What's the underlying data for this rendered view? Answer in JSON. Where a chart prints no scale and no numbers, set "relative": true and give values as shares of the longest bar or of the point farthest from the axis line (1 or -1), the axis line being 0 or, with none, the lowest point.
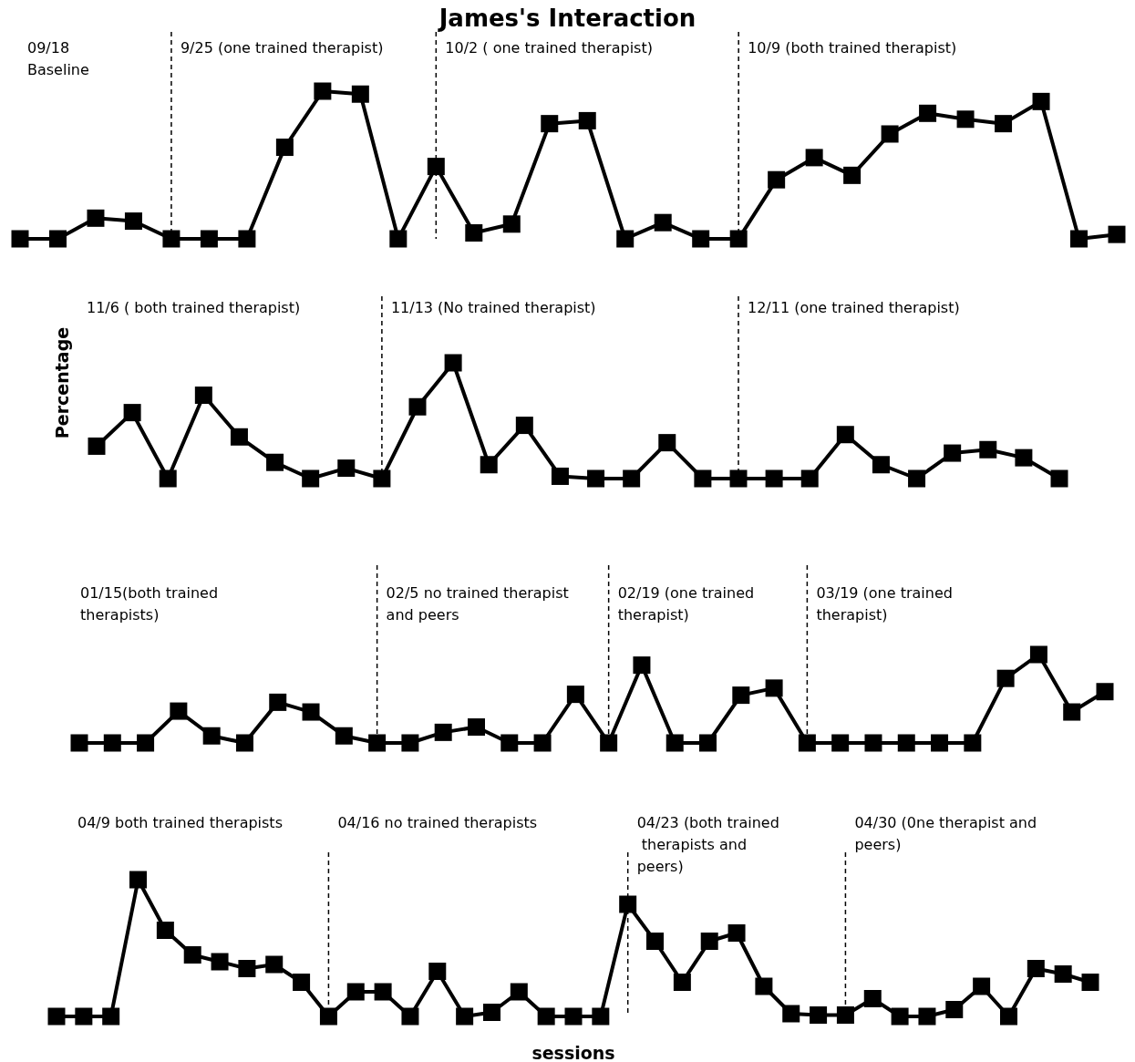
{
  "chart_data": [
    {
      "type": "line",
      "title": "James's Interaction",
      "relative": true,
      "marker": "square",
      "tick_labels": false,
      "categories": [
        null,
        null,
        null,
        null,
        null,
        null,
        null,
        null,
        null,
        null,
        null,
        null,
        null,
        null,
        null,
        null,
        null,
        null,
        null,
        null,
        null,
        null,
        null,
        null,
        null,
        null,
        null,
        null,
        null,
        null
      ],
      "series": [
        {
          "color": "#000000",
          "values": [
            0,
            0,
            0.14,
            0.12,
            0,
            0,
            0,
            0.62,
            1,
            0.98,
            0,
            0.49,
            0.04,
            0.1,
            0.78,
            0.8,
            0,
            0.11,
            0,
            0,
            0.4,
            0.55,
            0.43,
            0.71,
            0.85,
            0.81,
            0.78,
            0.93,
            0,
            0.03
          ]
        }
      ],
      "annotations": [
        "09/18 Baseline",
        "9/25 (one trained therapist)",
        "10/2 ( one trained therapist)",
        "10/9 (both trained therapist)"
      ]
    },
    {
      "type": "line",
      "ylabel": "Percentage",
      "relative": true,
      "marker": "square",
      "tick_labels": false,
      "categories": [
        null,
        null,
        null,
        null,
        null,
        null,
        null,
        null,
        null,
        null,
        null,
        null,
        null,
        null,
        null,
        null,
        null,
        null,
        null,
        null,
        null,
        null,
        null,
        null,
        null,
        null,
        null,
        null
      ],
      "series": [
        {
          "color": "#000000",
          "values": [
            0.28,
            0.57,
            0,
            0.72,
            0.36,
            0.14,
            0,
            0.09,
            0,
            0.62,
            1,
            0.12,
            0.46,
            0.02,
            0,
            0,
            0.31,
            0,
            0,
            0,
            0,
            0.38,
            0.12,
            0,
            0.22,
            0.25,
            0.18,
            0
          ]
        }
      ],
      "annotations": [
        "11/6 ( both trained therapist)",
        "11/13 (No trained therapist)",
        "12/11 (one trained therapist)"
      ]
    },
    {
      "type": "line",
      "relative": true,
      "marker": "square",
      "tick_labels": false,
      "categories": [
        null,
        null,
        null,
        null,
        null,
        null,
        null,
        null,
        null,
        null,
        null,
        null,
        null,
        null,
        null,
        null,
        null,
        null,
        null,
        null,
        null,
        null,
        null,
        null,
        null,
        null,
        null,
        null,
        null,
        null,
        null,
        null
      ],
      "series": [
        {
          "color": "#000000",
          "values": [
            0,
            0,
            0,
            0.36,
            0.08,
            0,
            0.46,
            0.35,
            0.08,
            0,
            0,
            0.12,
            0.18,
            0,
            0,
            0.55,
            0,
            0.88,
            0,
            0,
            0.54,
            0.62,
            0,
            0,
            0,
            0,
            0,
            0,
            0.73,
            1,
            0.35,
            0.58
          ]
        }
      ],
      "annotations": [
        "01/15(both trained therapists)",
        "02/5 no trained therapist and peers",
        "02/19 (one trained therapist)",
        "03/19 (one trained therapist)"
      ]
    },
    {
      "type": "line",
      "xlabel": "sessions",
      "relative": true,
      "marker": "square",
      "tick_labels": false,
      "categories": [
        null,
        null,
        null,
        null,
        null,
        null,
        null,
        null,
        null,
        null,
        null,
        null,
        null,
        null,
        null,
        null,
        null,
        null,
        null,
        null,
        null,
        null,
        null,
        null,
        null,
        null,
        null,
        null,
        null,
        null,
        null,
        null,
        null,
        null,
        null,
        null,
        null,
        null,
        null
      ],
      "series": [
        {
          "color": "#000000",
          "values": [
            0,
            0,
            0,
            1,
            0.63,
            0.45,
            0.4,
            0.35,
            0.38,
            0.25,
            0,
            0.18,
            0.18,
            0,
            0.33,
            0,
            0.03,
            0.18,
            0,
            0,
            0,
            0.82,
            0.55,
            0.25,
            0.55,
            0.61,
            0.22,
            0.02,
            0.01,
            0.01,
            0.13,
            0,
            0,
            0.05,
            0.22,
            0,
            0.35,
            0.31,
            0.25
          ]
        }
      ],
      "annotations": [
        "04/9 both trained therapists",
        "04/16 no trained therapists",
        "04/23 (both trained therapists and peers)",
        "04/30 (0ne therapist and peers)"
      ]
    }
  ]
}
